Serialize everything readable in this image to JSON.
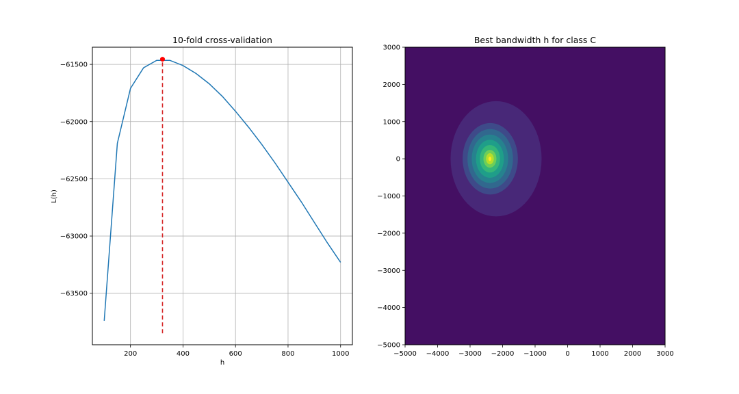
{
  "chart_data": [
    {
      "type": "line",
      "title": "10-fold cross-validation",
      "xlabel": "h",
      "ylabel": "L(h)",
      "xlim": [
        55,
        1045
      ],
      "ylim": [
        -63950,
        -61350
      ],
      "grid": true,
      "x_ticks": [
        200,
        400,
        600,
        800,
        1000
      ],
      "x_tick_labels": [
        "200",
        "400",
        "600",
        "800",
        "1000"
      ],
      "y_ticks": [
        -61500,
        -62000,
        -62500,
        -63000,
        -63500
      ],
      "y_tick_labels": [
        "−61500",
        "−62000",
        "−62500",
        "−63000",
        "−63500"
      ],
      "series": [
        {
          "color": "#1f77b4",
          "x": [
            100,
            150,
            200,
            250,
            300,
            350,
            400,
            450,
            500,
            550,
            600,
            650,
            700,
            750,
            800,
            850,
            900,
            950,
            1000
          ],
          "y": [
            -63740,
            -62190,
            -61710,
            -61530,
            -61465,
            -61465,
            -61510,
            -61580,
            -61670,
            -61780,
            -61910,
            -62050,
            -62200,
            -62360,
            -62530,
            -62700,
            -62880,
            -63060,
            -63230
          ]
        }
      ],
      "best_point": {
        "x": 322,
        "y": -61455,
        "color": "#ff0000"
      },
      "vline": {
        "x": 322,
        "y_from": -63850,
        "y_to": -61455,
        "color": "#d62728",
        "style": "dashed"
      }
    },
    {
      "type": "heatmap",
      "subtype": "filled-contour",
      "title": "Best bandwidth h for class C",
      "xlim": [
        -5000,
        3000
      ],
      "ylim": [
        -5000,
        3000
      ],
      "x_ticks": [
        -5000,
        -4000,
        -3000,
        -2000,
        -1000,
        0,
        1000,
        2000,
        3000
      ],
      "x_tick_labels": [
        "−5000",
        "−4000",
        "−3000",
        "−2000",
        "−1000",
        "0",
        "1000",
        "2000",
        "3000"
      ],
      "y_ticks": [
        3000,
        2000,
        1000,
        0,
        -1000,
        -2000,
        -3000,
        -4000,
        -5000
      ],
      "y_tick_labels": [
        "3000",
        "2000",
        "1000",
        "0",
        "−1000",
        "−2000",
        "−3000",
        "−4000",
        "−5000"
      ],
      "background_color": "#440f63",
      "peak": {
        "x": -2400,
        "y": 0
      },
      "colormap": "viridis",
      "contour_levels": [
        {
          "level": 1,
          "color": "#482878",
          "rx": 1400,
          "ry": 1550,
          "cx": -2200,
          "cy": 0
        },
        {
          "level": 2,
          "color": "#3e4a89",
          "rx": 850,
          "ry": 960,
          "cx": -2380,
          "cy": 0
        },
        {
          "level": 3,
          "color": "#31688e",
          "rx": 700,
          "ry": 800,
          "cx": -2380,
          "cy": 0
        },
        {
          "level": 4,
          "color": "#26828e",
          "rx": 560,
          "ry": 650,
          "cx": -2390,
          "cy": 0
        },
        {
          "level": 5,
          "color": "#1f9e89",
          "rx": 430,
          "ry": 510,
          "cx": -2390,
          "cy": 0
        },
        {
          "level": 6,
          "color": "#35b779",
          "rx": 310,
          "ry": 370,
          "cx": -2390,
          "cy": 0
        },
        {
          "level": 7,
          "color": "#6ece58",
          "rx": 200,
          "ry": 240,
          "cx": -2390,
          "cy": 0
        },
        {
          "level": 8,
          "color": "#b5de2b",
          "rx": 120,
          "ry": 150,
          "cx": -2390,
          "cy": 0
        },
        {
          "level": 9,
          "color": "#fde725",
          "rx": 45,
          "ry": 60,
          "cx": -2390,
          "cy": 0
        }
      ]
    }
  ]
}
